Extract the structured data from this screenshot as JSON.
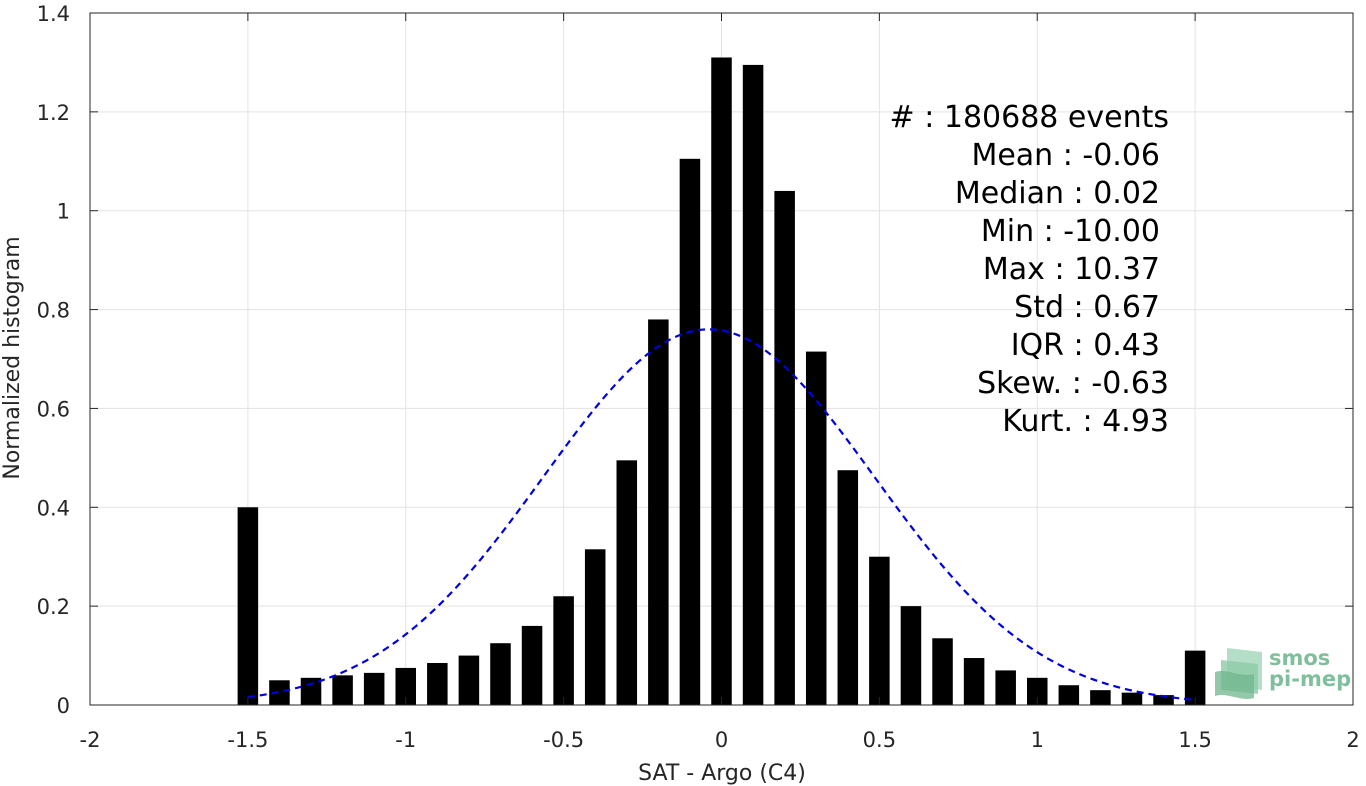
{
  "chart_data": {
    "type": "bar",
    "title": "",
    "xlabel": "SAT - Argo (C4)",
    "ylabel": "Normalized histogram",
    "xlim": [
      -2,
      2
    ],
    "ylim": [
      0,
      1.4
    ],
    "grid": true,
    "bar_width": 0.065,
    "x_ticks": [
      -2,
      -1.5,
      -1,
      -0.5,
      0,
      0.5,
      1,
      1.5,
      2
    ],
    "x_tick_labels": [
      "-2",
      "-1.5",
      "-1",
      "-0.5",
      "0",
      "0.5",
      "1",
      "1.5",
      "2"
    ],
    "y_ticks": [
      0,
      0.2,
      0.4,
      0.6,
      0.8,
      1.0,
      1.2,
      1.4
    ],
    "y_tick_labels": [
      "0",
      "0.2",
      "0.4",
      "0.6",
      "0.8",
      "1",
      "1.2",
      "1.4"
    ],
    "x": [
      -1.5,
      -1.4,
      -1.3,
      -1.2,
      -1.1,
      -1.0,
      -0.9,
      -0.8,
      -0.7,
      -0.6,
      -0.5,
      -0.4,
      -0.3,
      -0.2,
      -0.1,
      0.0,
      0.1,
      0.2,
      0.3,
      0.4,
      0.5,
      0.6,
      0.7,
      0.8,
      0.9,
      1.0,
      1.1,
      1.2,
      1.3,
      1.4,
      1.5
    ],
    "values": [
      0.4,
      0.05,
      0.055,
      0.06,
      0.065,
      0.075,
      0.085,
      0.1,
      0.125,
      0.16,
      0.22,
      0.315,
      0.495,
      0.78,
      1.105,
      1.31,
      1.295,
      1.04,
      0.715,
      0.475,
      0.3,
      0.2,
      0.135,
      0.095,
      0.07,
      0.055,
      0.04,
      0.03,
      0.025,
      0.02,
      0.11
    ],
    "bar_color": "#000000",
    "fit_curve": {
      "style": "dashed",
      "color": "#0000e0",
      "mean": -0.04,
      "std": 0.525,
      "peak": 0.76,
      "x_range": [
        -1.5,
        1.5
      ]
    },
    "stats_lines": [
      "#  : 180688 events",
      "Mean : -0.06",
      "Median : 0.02",
      "Min : -10.00",
      "Max : 10.37",
      "Std : 0.67",
      "IQR : 0.43",
      "Skew. : -0.63",
      "Kurt. : 4.93"
    ],
    "logo": {
      "line1": "smos",
      "line2": "pi-mep",
      "color": "#7fbf9c"
    }
  }
}
